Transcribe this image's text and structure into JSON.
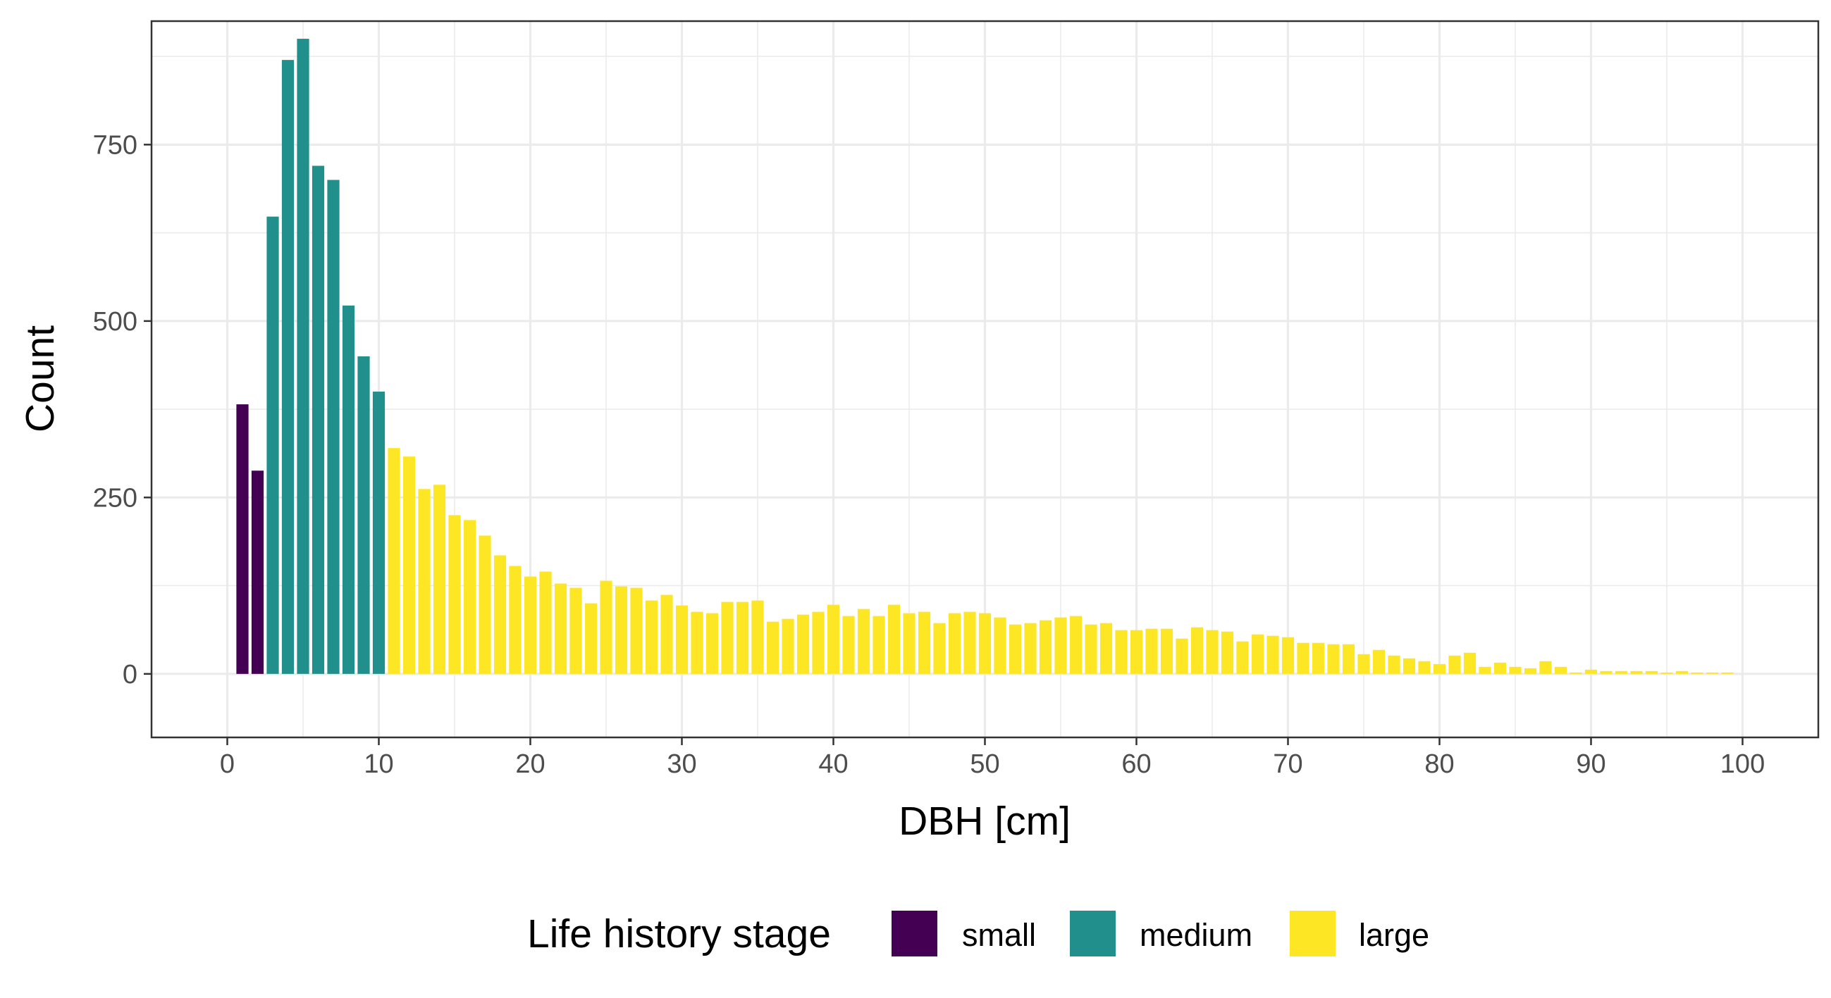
{
  "chart_data": {
    "type": "bar",
    "title": "",
    "xlabel": "DBH [cm]",
    "ylabel": "Count",
    "xlim": [
      -5,
      105
    ],
    "ylim": [
      -90,
      925
    ],
    "x_ticks": [
      0,
      10,
      20,
      30,
      40,
      50,
      60,
      70,
      80,
      90,
      100
    ],
    "x_tick_labels": [
      "0",
      "10",
      "20",
      "30",
      "40",
      "50",
      "60",
      "70",
      "80",
      "90",
      "100"
    ],
    "y_ticks": [
      0,
      250,
      500,
      750
    ],
    "y_tick_labels": [
      "0",
      "250",
      "500",
      "750"
    ],
    "bin_width": 1,
    "grid": true,
    "legend": {
      "title": "Life history stage",
      "position": "bottom",
      "entries": [
        {
          "key": "small",
          "label": "small",
          "color": "#440154"
        },
        {
          "key": "medium",
          "label": "medium",
          "color": "#21908C"
        },
        {
          "key": "large",
          "label": "large",
          "color": "#FDE725"
        }
      ]
    },
    "series": [
      {
        "name": "small",
        "color": "#440154",
        "x": [
          1,
          2
        ],
        "values": [
          382,
          288
        ]
      },
      {
        "name": "medium",
        "color": "#21908C",
        "x": [
          3,
          4,
          5,
          6,
          7,
          8,
          9,
          10
        ],
        "values": [
          648,
          870,
          900,
          720,
          700,
          522,
          450,
          400
        ]
      },
      {
        "name": "large",
        "color": "#FDE725",
        "x": [
          11,
          12,
          13,
          14,
          15,
          16,
          17,
          18,
          19,
          20,
          21,
          22,
          23,
          24,
          25,
          26,
          27,
          28,
          29,
          30,
          31,
          32,
          33,
          34,
          35,
          36,
          37,
          38,
          39,
          40,
          41,
          42,
          43,
          44,
          45,
          46,
          47,
          48,
          49,
          50,
          51,
          52,
          53,
          54,
          55,
          56,
          57,
          58,
          59,
          60,
          61,
          62,
          63,
          64,
          65,
          66,
          67,
          68,
          69,
          70,
          71,
          72,
          73,
          74,
          75,
          76,
          77,
          78,
          79,
          80,
          81,
          82,
          83,
          84,
          85,
          86,
          87,
          88,
          89,
          90,
          91,
          92,
          93,
          94,
          95,
          96,
          97,
          98,
          99
        ],
        "values": [
          320,
          308,
          262,
          268,
          225,
          218,
          196,
          168,
          153,
          138,
          145,
          128,
          122,
          100,
          132,
          124,
          122,
          104,
          112,
          97,
          88,
          86,
          102,
          102,
          104,
          74,
          78,
          84,
          88,
          98,
          82,
          92,
          82,
          98,
          86,
          88,
          72,
          86,
          88,
          86,
          80,
          70,
          72,
          76,
          80,
          82,
          70,
          72,
          62,
          62,
          64,
          64,
          50,
          66,
          62,
          60,
          46,
          56,
          54,
          52,
          44,
          44,
          42,
          42,
          28,
          34,
          26,
          22,
          18,
          14,
          26,
          30,
          10,
          16,
          10,
          8,
          18,
          10,
          2,
          6,
          4,
          4,
          4,
          4,
          2,
          4,
          2,
          2,
          2
        ]
      }
    ]
  }
}
